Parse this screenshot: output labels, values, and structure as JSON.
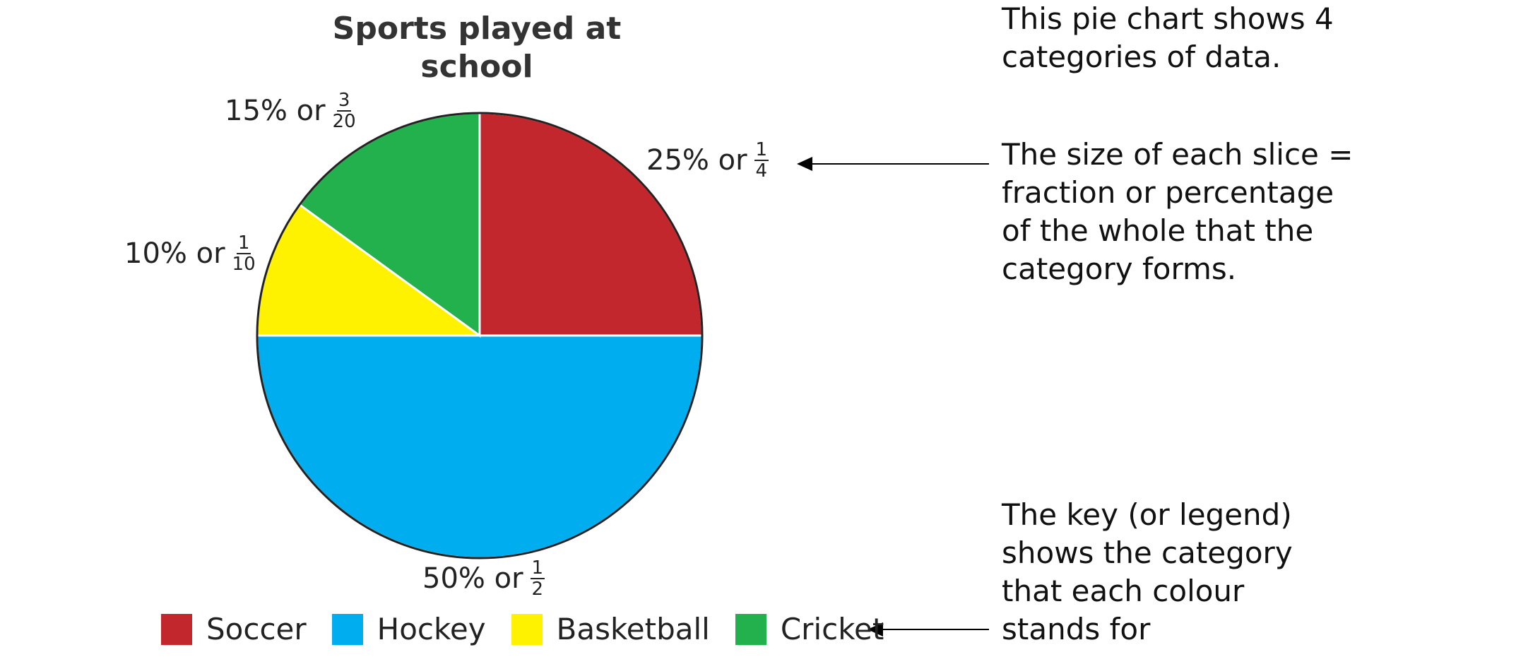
{
  "chart_data": {
    "type": "pie",
    "title_lines": [
      "Sports played at",
      "school"
    ],
    "slices": [
      {
        "name": "Soccer",
        "value": 25,
        "percent_label": "25% or",
        "fraction": {
          "num": "1",
          "den": "4"
        },
        "color": "#C1272D"
      },
      {
        "name": "Hockey",
        "value": 50,
        "percent_label": "50% or",
        "fraction": {
          "num": "1",
          "den": "2"
        },
        "color": "#00AEEF"
      },
      {
        "name": "Basketball",
        "value": 10,
        "percent_label": "10% or",
        "fraction": {
          "num": "1",
          "den": "10"
        },
        "color": "#FFF200"
      },
      {
        "name": "Cricket",
        "value": 15,
        "percent_label": "15% or",
        "fraction": {
          "num": "3",
          "den": "20"
        },
        "color": "#22B14C"
      }
    ],
    "legend_placement": "bottom"
  },
  "notes": {
    "categories": [
      "This pie chart shows 4",
      "categories of data."
    ],
    "slice_size": [
      "The size of each slice =",
      "fraction or percentage",
      "of the whole that the",
      "category forms."
    ],
    "key": [
      "The key (or legend)",
      "shows the category",
      "that each colour",
      "stands for"
    ]
  }
}
